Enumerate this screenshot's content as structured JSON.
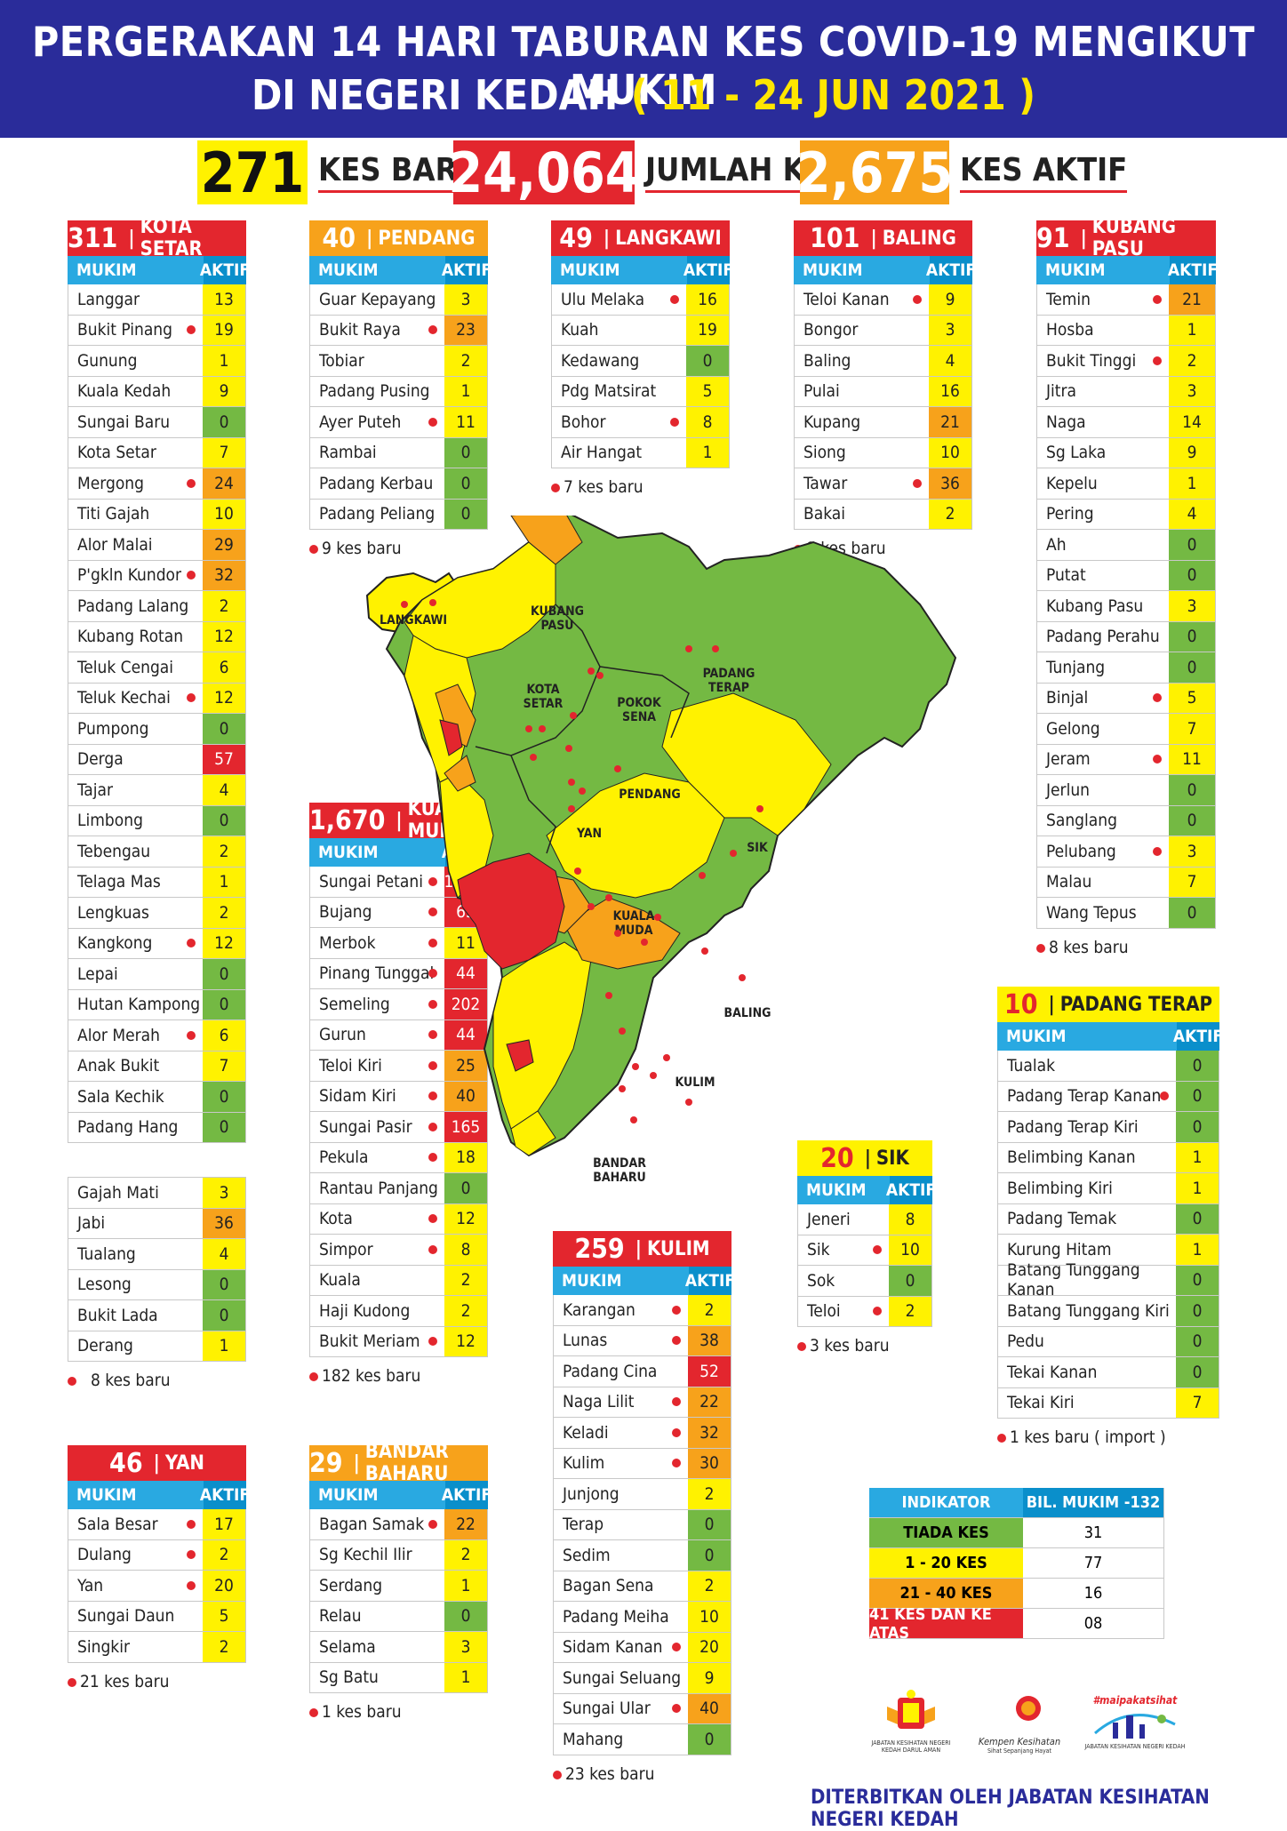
{
  "header": {
    "line1": "PERGERAKAN 14 HARI TABURAN KES COVID-19 MENGIKUT MUKIM",
    "line2": "DI NEGERI KEDAH",
    "date": "( 11 - 24 JUN 2021 )"
  },
  "stats": {
    "kes_baru": {
      "value": "271",
      "label": "KES BARU"
    },
    "jumlah_kes": {
      "value": "24,064",
      "label": "JUMLAH KES"
    },
    "kes_aktif": {
      "value": "2,675",
      "label": "KES AKTIF"
    }
  },
  "table_header": {
    "mukim": "MUKIM",
    "aktif": "AKTIF"
  },
  "districts": {
    "kota_setar": {
      "total": "311",
      "name": "KOTA SETAR",
      "note": "8 kes baru",
      "rows": [
        {
          "n": "Langgar",
          "v": "13",
          "c": "y",
          "d": false
        },
        {
          "n": "Bukit Pinang",
          "v": "19",
          "c": "y",
          "d": true
        },
        {
          "n": "Gunung",
          "v": "1",
          "c": "y",
          "d": false
        },
        {
          "n": "Kuala Kedah",
          "v": "9",
          "c": "y",
          "d": false
        },
        {
          "n": "Sungai Baru",
          "v": "0",
          "c": "g",
          "d": false
        },
        {
          "n": "Kota Setar",
          "v": "7",
          "c": "y",
          "d": false
        },
        {
          "n": "Mergong",
          "v": "24",
          "c": "o",
          "d": true
        },
        {
          "n": "Titi Gajah",
          "v": "10",
          "c": "y",
          "d": false
        },
        {
          "n": "Alor Malai",
          "v": "29",
          "c": "o",
          "d": false
        },
        {
          "n": "P'gkln Kundor",
          "v": "32",
          "c": "o",
          "d": true
        },
        {
          "n": "Padang Lalang",
          "v": "2",
          "c": "y",
          "d": false
        },
        {
          "n": "Kubang Rotan",
          "v": "12",
          "c": "y",
          "d": false
        },
        {
          "n": "Teluk Cengai",
          "v": "6",
          "c": "y",
          "d": false
        },
        {
          "n": "Teluk Kechai",
          "v": "12",
          "c": "y",
          "d": true
        },
        {
          "n": "Pumpong",
          "v": "0",
          "c": "g",
          "d": false
        },
        {
          "n": "Derga",
          "v": "57",
          "c": "r",
          "d": false
        },
        {
          "n": "Tajar",
          "v": "4",
          "c": "y",
          "d": false
        },
        {
          "n": "Limbong",
          "v": "0",
          "c": "g",
          "d": false
        },
        {
          "n": "Tebengau",
          "v": "2",
          "c": "y",
          "d": false
        },
        {
          "n": "Telaga Mas",
          "v": "1",
          "c": "y",
          "d": false
        },
        {
          "n": "Lengkuas",
          "v": "2",
          "c": "y",
          "d": false
        },
        {
          "n": "Kangkong",
          "v": "12",
          "c": "y",
          "d": true
        },
        {
          "n": "Lepai",
          "v": "0",
          "c": "g",
          "d": false
        },
        {
          "n": "Hutan Kampong",
          "v": "0",
          "c": "g",
          "d": false
        },
        {
          "n": "Alor Merah",
          "v": "6",
          "c": "y",
          "d": true
        },
        {
          "n": "Anak Bukit",
          "v": "7",
          "c": "y",
          "d": false
        },
        {
          "n": "Sala Kechik",
          "v": "0",
          "c": "g",
          "d": false
        },
        {
          "n": "Padang Hang",
          "v": "0",
          "c": "g",
          "d": false
        }
      ],
      "rows2": [
        {
          "n": "Gajah Mati",
          "v": "3",
          "c": "y",
          "d": false
        },
        {
          "n": "Jabi",
          "v": "36",
          "c": "o",
          "d": false
        },
        {
          "n": "Tualang",
          "v": "4",
          "c": "y",
          "d": false
        },
        {
          "n": "Lesong",
          "v": "0",
          "c": "g",
          "d": false
        },
        {
          "n": "Bukit Lada",
          "v": "0",
          "c": "g",
          "d": false
        },
        {
          "n": "Derang",
          "v": "1",
          "c": "y",
          "d": false
        }
      ]
    },
    "pendang": {
      "total": "40",
      "name": "PENDANG",
      "note": "9 kes baru",
      "rows": [
        {
          "n": "Guar Kepayang",
          "v": "3",
          "c": "y",
          "d": false
        },
        {
          "n": "Bukit Raya",
          "v": "23",
          "c": "o",
          "d": true
        },
        {
          "n": "Tobiar",
          "v": "2",
          "c": "y",
          "d": false
        },
        {
          "n": "Padang Pusing",
          "v": "1",
          "c": "y",
          "d": false
        },
        {
          "n": "Ayer Puteh",
          "v": "11",
          "c": "y",
          "d": true
        },
        {
          "n": "Rambai",
          "v": "0",
          "c": "g",
          "d": false
        },
        {
          "n": "Padang Kerbau",
          "v": "0",
          "c": "g",
          "d": false
        },
        {
          "n": "Padang Peliang",
          "v": "0",
          "c": "g",
          "d": false
        }
      ]
    },
    "langkawi": {
      "total": "49",
      "name": "LANGKAWI",
      "note": "7 kes baru",
      "rows": [
        {
          "n": "Ulu Melaka",
          "v": "16",
          "c": "y",
          "d": true
        },
        {
          "n": "Kuah",
          "v": "19",
          "c": "y",
          "d": false
        },
        {
          "n": "Kedawang",
          "v": "0",
          "c": "g",
          "d": false
        },
        {
          "n": "Pdg Matsirat",
          "v": "5",
          "c": "y",
          "d": false
        },
        {
          "n": "Bohor",
          "v": "8",
          "c": "y",
          "d": true
        },
        {
          "n": "Air Hangat",
          "v": "1",
          "c": "y",
          "d": false
        }
      ]
    },
    "baling": {
      "total": "101",
      "name": "BALING",
      "note": "8 kes baru",
      "rows": [
        {
          "n": "Teloi Kanan",
          "v": "9",
          "c": "y",
          "d": true
        },
        {
          "n": "Bongor",
          "v": "3",
          "c": "y",
          "d": false
        },
        {
          "n": "Baling",
          "v": "4",
          "c": "y",
          "d": false
        },
        {
          "n": "Pulai",
          "v": "16",
          "c": "y",
          "d": false
        },
        {
          "n": "Kupang",
          "v": "21",
          "c": "o",
          "d": false
        },
        {
          "n": "Siong",
          "v": "10",
          "c": "y",
          "d": false
        },
        {
          "n": "Tawar",
          "v": "36",
          "c": "o",
          "d": true
        },
        {
          "n": "Bakai",
          "v": "2",
          "c": "y",
          "d": false
        }
      ]
    },
    "kubang_pasu": {
      "total": "91",
      "name": "KUBANG PASU",
      "note": "8 kes baru",
      "rows": [
        {
          "n": "Temin",
          "v": "21",
          "c": "o",
          "d": true
        },
        {
          "n": "Hosba",
          "v": "1",
          "c": "y",
          "d": false
        },
        {
          "n": "Bukit Tinggi",
          "v": "2",
          "c": "y",
          "d": true
        },
        {
          "n": "Jitra",
          "v": "3",
          "c": "y",
          "d": false
        },
        {
          "n": "Naga",
          "v": "14",
          "c": "y",
          "d": false
        },
        {
          "n": "Sg Laka",
          "v": "9",
          "c": "y",
          "d": false
        },
        {
          "n": "Kepelu",
          "v": "1",
          "c": "y",
          "d": false
        },
        {
          "n": "Pering",
          "v": "4",
          "c": "y",
          "d": false
        },
        {
          "n": "Ah",
          "v": "0",
          "c": "g",
          "d": false
        },
        {
          "n": "Putat",
          "v": "0",
          "c": "g",
          "d": false
        },
        {
          "n": "Kubang Pasu",
          "v": "3",
          "c": "y",
          "d": false
        },
        {
          "n": "Padang Perahu",
          "v": "0",
          "c": "g",
          "d": false
        },
        {
          "n": "Tunjang",
          "v": "0",
          "c": "g",
          "d": false
        },
        {
          "n": "Binjal",
          "v": "5",
          "c": "y",
          "d": true
        },
        {
          "n": "Gelong",
          "v": "7",
          "c": "y",
          "d": false
        },
        {
          "n": "Jeram",
          "v": "11",
          "c": "y",
          "d": true
        },
        {
          "n": "Jerlun",
          "v": "0",
          "c": "g",
          "d": false
        },
        {
          "n": "Sanglang",
          "v": "0",
          "c": "g",
          "d": false
        },
        {
          "n": "Pelubang",
          "v": "3",
          "c": "y",
          "d": true
        },
        {
          "n": "Malau",
          "v": "7",
          "c": "y",
          "d": false
        },
        {
          "n": "Wang Tepus",
          "v": "0",
          "c": "g",
          "d": false
        }
      ]
    },
    "kuala_muda": {
      "total": "1,670",
      "name": "KUALA MUDA",
      "note": "182 kes baru",
      "rows": [
        {
          "n": "Sungai Petani",
          "v": "1,022",
          "c": "r",
          "d": true
        },
        {
          "n": "Bujang",
          "v": "63",
          "c": "r",
          "d": true
        },
        {
          "n": "Merbok",
          "v": "11",
          "c": "y",
          "d": true
        },
        {
          "n": "Pinang Tunggal",
          "v": "44",
          "c": "r",
          "d": true
        },
        {
          "n": "Semeling",
          "v": "202",
          "c": "r",
          "d": true
        },
        {
          "n": "Gurun",
          "v": "44",
          "c": "r",
          "d": true
        },
        {
          "n": "Teloi Kiri",
          "v": "25",
          "c": "o",
          "d": true
        },
        {
          "n": "Sidam Kiri",
          "v": "40",
          "c": "o",
          "d": true
        },
        {
          "n": "Sungai Pasir",
          "v": "165",
          "c": "r",
          "d": true
        },
        {
          "n": "Pekula",
          "v": "18",
          "c": "y",
          "d": true
        },
        {
          "n": "Rantau Panjang",
          "v": "0",
          "c": "g",
          "d": false
        },
        {
          "n": "Kota",
          "v": "12",
          "c": "y",
          "d": true
        },
        {
          "n": "Simpor",
          "v": "8",
          "c": "y",
          "d": true
        },
        {
          "n": "Kuala",
          "v": "2",
          "c": "y",
          "d": false
        },
        {
          "n": "Haji Kudong",
          "v": "2",
          "c": "y",
          "d": false
        },
        {
          "n": "Bukit Meriam",
          "v": "12",
          "c": "y",
          "d": true
        }
      ]
    },
    "padang_terap": {
      "total": "10",
      "name": "PADANG TERAP",
      "note": "1 kes baru ( import )",
      "rows": [
        {
          "n": "Tualak",
          "v": "0",
          "c": "g",
          "d": false
        },
        {
          "n": "Padang Terap Kanan",
          "v": "0",
          "c": "g",
          "d": true
        },
        {
          "n": "Padang Terap Kiri",
          "v": "0",
          "c": "g",
          "d": false
        },
        {
          "n": "Belimbing Kanan",
          "v": "1",
          "c": "y",
          "d": false
        },
        {
          "n": "Belimbing Kiri",
          "v": "1",
          "c": "y",
          "d": false
        },
        {
          "n": "Padang Temak",
          "v": "0",
          "c": "g",
          "d": false
        },
        {
          "n": "Kurung Hitam",
          "v": "1",
          "c": "y",
          "d": false
        },
        {
          "n": "Batang Tunggang Kanan",
          "v": "0",
          "c": "g",
          "d": false
        },
        {
          "n": "Batang Tunggang Kiri",
          "v": "0",
          "c": "g",
          "d": false
        },
        {
          "n": "Pedu",
          "v": "0",
          "c": "g",
          "d": false
        },
        {
          "n": "Tekai Kanan",
          "v": "0",
          "c": "g",
          "d": false
        },
        {
          "n": "Tekai Kiri",
          "v": "7",
          "c": "y",
          "d": false
        }
      ]
    },
    "sik": {
      "total": "20",
      "name": "SIK",
      "note": "3 kes baru",
      "rows": [
        {
          "n": "Jeneri",
          "v": "8",
          "c": "y",
          "d": false
        },
        {
          "n": "Sik",
          "v": "10",
          "c": "y",
          "d": true
        },
        {
          "n": "Sok",
          "v": "0",
          "c": "g",
          "d": false
        },
        {
          "n": "Teloi",
          "v": "2",
          "c": "y",
          "d": true
        }
      ]
    },
    "kulim": {
      "total": "259",
      "name": "KULIM",
      "note": "23 kes baru",
      "rows": [
        {
          "n": "Karangan",
          "v": "2",
          "c": "y",
          "d": true
        },
        {
          "n": "Lunas",
          "v": "38",
          "c": "o",
          "d": true
        },
        {
          "n": "Padang Cina",
          "v": "52",
          "c": "r",
          "d": false
        },
        {
          "n": "Naga Lilit",
          "v": "22",
          "c": "o",
          "d": true
        },
        {
          "n": "Keladi",
          "v": "32",
          "c": "o",
          "d": true
        },
        {
          "n": "Kulim",
          "v": "30",
          "c": "o",
          "d": true
        },
        {
          "n": "Junjong",
          "v": "2",
          "c": "y",
          "d": false
        },
        {
          "n": "Terap",
          "v": "0",
          "c": "g",
          "d": false
        },
        {
          "n": "Sedim",
          "v": "0",
          "c": "g",
          "d": false
        },
        {
          "n": "Bagan Sena",
          "v": "2",
          "c": "y",
          "d": false
        },
        {
          "n": "Padang Meiha",
          "v": "10",
          "c": "y",
          "d": false
        },
        {
          "n": "Sidam Kanan",
          "v": "20",
          "c": "y",
          "d": true
        },
        {
          "n": "Sungai Seluang",
          "v": "9",
          "c": "y",
          "d": false
        },
        {
          "n": "Sungai Ular",
          "v": "40",
          "c": "o",
          "d": true
        },
        {
          "n": "Mahang",
          "v": "0",
          "c": "g",
          "d": false
        }
      ]
    },
    "yan": {
      "total": "46",
      "name": "YAN",
      "note": "21 kes baru",
      "rows": [
        {
          "n": "Sala Besar",
          "v": "17",
          "c": "y",
          "d": true
        },
        {
          "n": "Dulang",
          "v": "2",
          "c": "y",
          "d": true
        },
        {
          "n": "Yan",
          "v": "20",
          "c": "y",
          "d": true
        },
        {
          "n": "Sungai Daun",
          "v": "5",
          "c": "y",
          "d": false
        },
        {
          "n": "Singkir",
          "v": "2",
          "c": "y",
          "d": false
        }
      ]
    },
    "bandar_baharu": {
      "total": "29",
      "name": "BANDAR BAHARU",
      "note": "1 kes baru",
      "rows": [
        {
          "n": "Bagan Samak",
          "v": "22",
          "c": "o",
          "d": true
        },
        {
          "n": "Sg Kechil Ilir",
          "v": "2",
          "c": "y",
          "d": false
        },
        {
          "n": "Serdang",
          "v": "1",
          "c": "y",
          "d": false
        },
        {
          "n": "Relau",
          "v": "0",
          "c": "g",
          "d": false
        },
        {
          "n": "Selama",
          "v": "3",
          "c": "y",
          "d": false
        },
        {
          "n": "Sg Batu",
          "v": "1",
          "c": "y",
          "d": false
        }
      ]
    }
  },
  "map_labels": {
    "langkawi": "LANGKAWI",
    "kubang_pasu_1": "KUBANG",
    "kubang_pasu_2": "PASU",
    "padang_terap_1": "PADANG",
    "padang_terap_2": "TERAP",
    "kota_setar_1": "KOTA",
    "kota_setar_2": "SETAR",
    "pokok_sena_1": "POKOK",
    "pokok_sena_2": "SENA",
    "pendang": "PENDANG",
    "yan": "YAN",
    "sik": "SIK",
    "kuala_muda_1": "KUALA",
    "kuala_muda_2": "MUDA",
    "baling": "BALING",
    "kulim": "KULIM",
    "bandar_baharu_1": "BANDAR",
    "bandar_baharu_2": "BAHARU"
  },
  "indicator": {
    "h1": "INDIKATOR",
    "h2": "BIL. MUKIM -132",
    "rows": [
      {
        "label": "TIADA KES",
        "value": "31",
        "color": "#74b943"
      },
      {
        "label": "1 - 20 KES",
        "value": "77",
        "color": "#fff200"
      },
      {
        "label": "21 - 40 KES",
        "value": "16",
        "color": "#f7a21b"
      },
      {
        "label": "41 KES DAN KE ATAS",
        "value": "08",
        "color": "#e3262e"
      }
    ]
  },
  "logos": {
    "jkn": "JABATAN KESIHATAN NEGERI KEDAH DARUL AMAN",
    "kempen": "Kempen Kesihatan",
    "kempen_sub": "Sihat Sepanjang Hayat",
    "malpakat": "#maipakatsihat",
    "malpakat_sub": "JABATAN KESIHATAN NEGERI KEDAH"
  },
  "footer": "DITERBITKAN OLEH JABATAN KESIHATAN NEGERI KEDAH",
  "colors": {
    "header_bg": "#2a2c9a",
    "green": "#74b943",
    "yellow": "#fff200",
    "orange": "#f7a21b",
    "red": "#e3262e",
    "blue": "#29a9e1"
  }
}
